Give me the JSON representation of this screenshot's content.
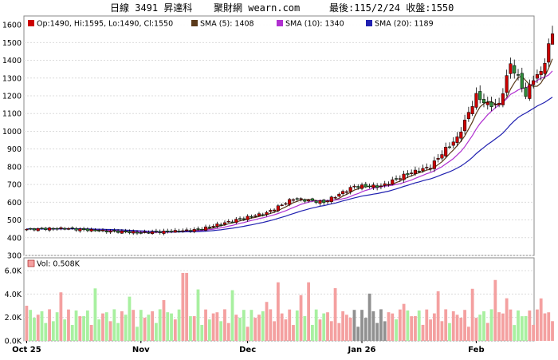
{
  "header": {
    "title_left": "日線 3491 昇達科",
    "title_site": "聚財網 wearn.com",
    "title_right": "最後:115/2/24 收盤:1550"
  },
  "legend": {
    "ohlc": "Op:1490, Hi:1595, Lo:1490, Cl:1550",
    "sma5": "SMA (5): 1408",
    "sma10": "SMA (10): 1340",
    "sma20": "SMA (20): 1189",
    "vol": "Vol: 0.508K"
  },
  "colors": {
    "up": "#cc0000",
    "down": "#2e8b3a",
    "sma5": "#5a3a1a",
    "sma10": "#b030d0",
    "sma20": "#2020b0",
    "vol_up": "#f4a0a0",
    "vol_down": "#a8f0a0",
    "vol_flat": "#909090"
  },
  "chart_data": [
    {
      "type": "candlestick",
      "ylim": [
        300,
        1650
      ],
      "yticks": [
        "300",
        "400",
        "500",
        "600",
        "700",
        "800",
        "900",
        "1000",
        "1100",
        "1200",
        "1300",
        "1400",
        "1500",
        "1600"
      ],
      "xtick_labels": [
        "Oct 25",
        "Nov",
        "Dec",
        "Jan 26",
        "Feb"
      ],
      "anchors": [
        {
          "i": 0,
          "c": 448
        },
        {
          "i": 10,
          "c": 452
        },
        {
          "i": 20,
          "c": 438
        },
        {
          "i": 30,
          "c": 428
        },
        {
          "i": 38,
          "c": 435
        },
        {
          "i": 45,
          "c": 445
        },
        {
          "i": 55,
          "c": 500
        },
        {
          "i": 63,
          "c": 540
        },
        {
          "i": 70,
          "c": 620
        },
        {
          "i": 78,
          "c": 600
        },
        {
          "i": 86,
          "c": 690
        },
        {
          "i": 93,
          "c": 690
        },
        {
          "i": 100,
          "c": 760
        },
        {
          "i": 106,
          "c": 800
        },
        {
          "i": 110,
          "c": 900
        },
        {
          "i": 113,
          "c": 960
        },
        {
          "i": 118,
          "c": 1200
        },
        {
          "i": 121,
          "c": 1150
        },
        {
          "i": 124,
          "c": 1150
        },
        {
          "i": 127,
          "c": 1380
        },
        {
          "i": 129,
          "c": 1300
        },
        {
          "i": 131,
          "c": 1200
        },
        {
          "i": 133,
          "c": 1300
        },
        {
          "i": 135,
          "c": 1330
        },
        {
          "i": 136,
          "c": 1400
        },
        {
          "i": 137,
          "c": 1480
        },
        {
          "i": 138,
          "c": 1550
        }
      ],
      "sma": {
        "sma5": 1408,
        "sma10": 1340,
        "sma20": 1189
      }
    },
    {
      "type": "bar",
      "title": "Vol",
      "ylim": [
        0,
        6000
      ],
      "yticks": [
        "0.0K",
        "2.0K",
        "4.0K",
        "6.0K"
      ]
    }
  ]
}
